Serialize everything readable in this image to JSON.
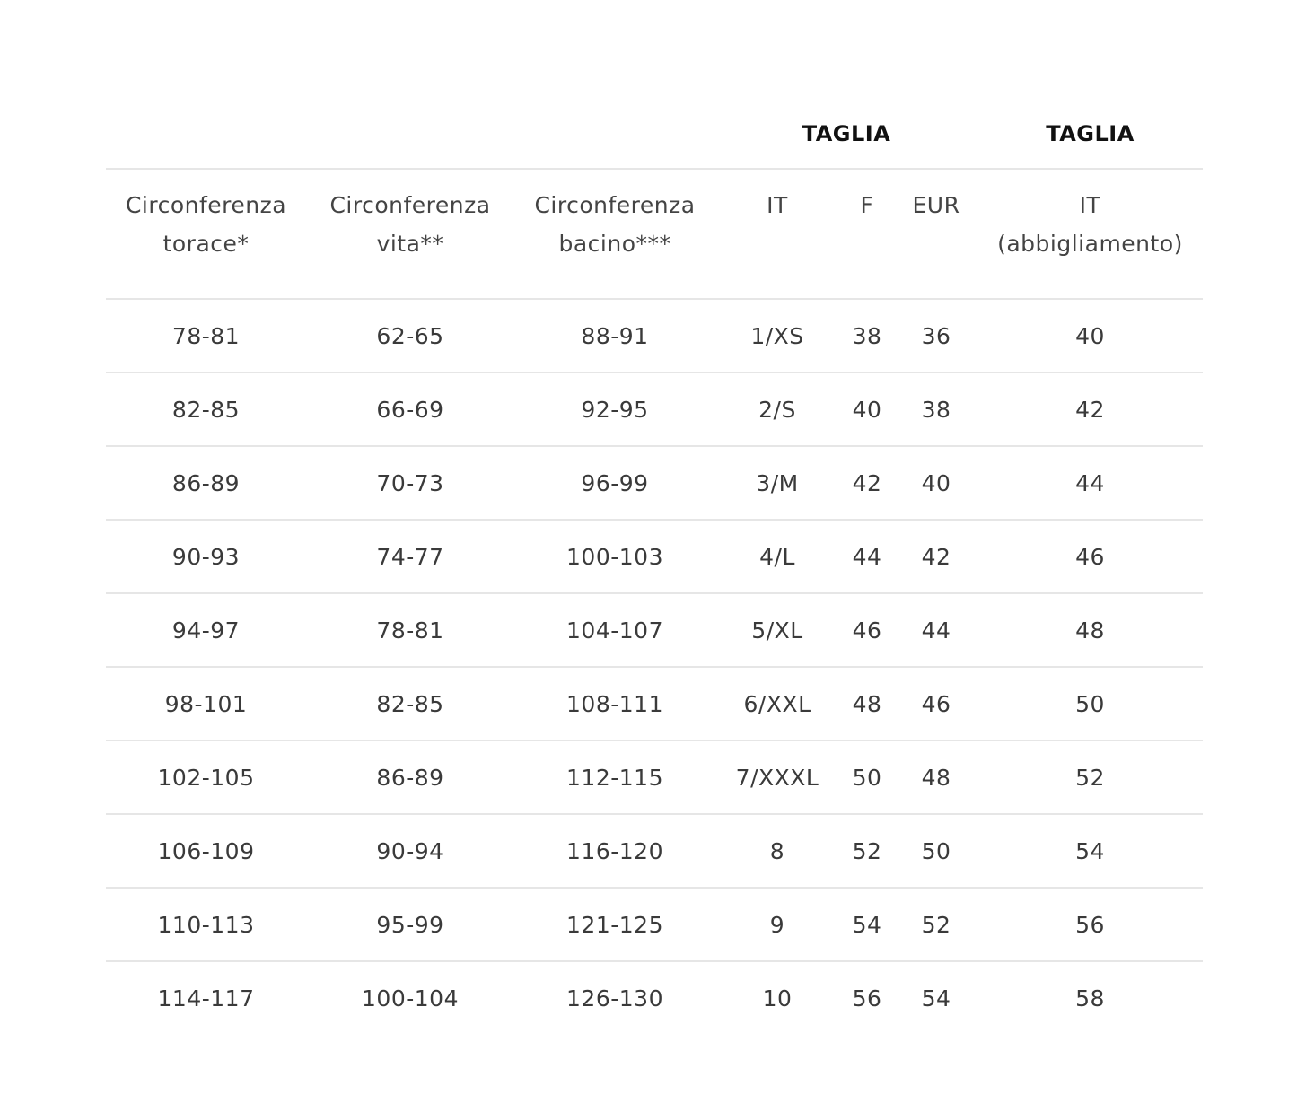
{
  "group_headers": {
    "taglia_1": "TAGLIA",
    "taglia_2": "TAGLIA"
  },
  "columns": [
    {
      "line1": "Circonferenza",
      "line2": "torace*"
    },
    {
      "line1": "Circonferenza",
      "line2": "vita**"
    },
    {
      "line1": "Circonferenza",
      "line2": "bacino***"
    },
    {
      "line1": "IT",
      "line2": ""
    },
    {
      "line1": "F",
      "line2": ""
    },
    {
      "line1": "EUR",
      "line2": ""
    },
    {
      "line1": "IT",
      "line2": "(abbigliamento)"
    }
  ],
  "rows": [
    [
      "78-81",
      "62-65",
      "88-91",
      "1/XS",
      "38",
      "36",
      "40"
    ],
    [
      "82-85",
      "66-69",
      "92-95",
      "2/S",
      "40",
      "38",
      "42"
    ],
    [
      "86-89",
      "70-73",
      "96-99",
      "3/M",
      "42",
      "40",
      "44"
    ],
    [
      "90-93",
      "74-77",
      "100-103",
      "4/L",
      "44",
      "42",
      "46"
    ],
    [
      "94-97",
      "78-81",
      "104-107",
      "5/XL",
      "46",
      "44",
      "48"
    ],
    [
      "98-101",
      "82-85",
      "108-111",
      "6/XXL",
      "48",
      "46",
      "50"
    ],
    [
      "102-105",
      "86-89",
      "112-115",
      "7/XXXL",
      "50",
      "48",
      "52"
    ],
    [
      "106-109",
      "90-94",
      "116-120",
      "8",
      "52",
      "50",
      "54"
    ],
    [
      "110-113",
      "95-99",
      "121-125",
      "9",
      "54",
      "52",
      "56"
    ],
    [
      "114-117",
      "100-104",
      "126-130",
      "10",
      "56",
      "54",
      "58"
    ]
  ]
}
